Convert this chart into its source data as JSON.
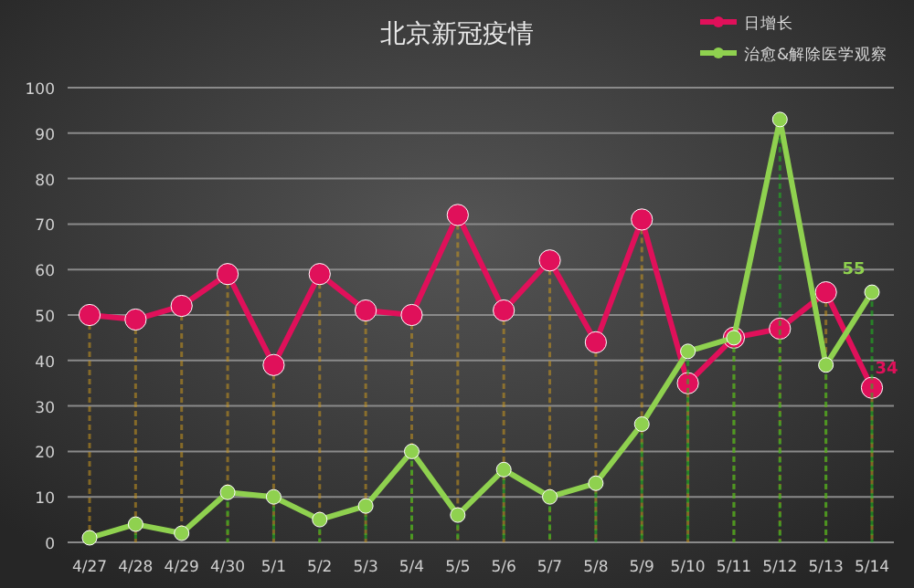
{
  "chart_data": {
    "type": "line",
    "title": "北京新冠疫情",
    "categories": [
      "4/27",
      "4/28",
      "4/29",
      "4/30",
      "5/1",
      "5/2",
      "5/3",
      "5/4",
      "5/5",
      "5/6",
      "5/7",
      "5/8",
      "5/9",
      "5/10",
      "5/11",
      "5/12",
      "5/13",
      "5/14"
    ],
    "series": [
      {
        "name": "日增长",
        "color": "#e0105a",
        "values": [
          50,
          49,
          52,
          59,
          39,
          59,
          51,
          50,
          72,
          51,
          62,
          44,
          71,
          35,
          45,
          47,
          55,
          34
        ],
        "value_labels": [
          null,
          null,
          null,
          null,
          null,
          null,
          null,
          null,
          null,
          null,
          null,
          null,
          null,
          null,
          null,
          null,
          null,
          "34"
        ]
      },
      {
        "name": "治愈&解除医学观察",
        "color": "#8fd14f",
        "values": [
          1,
          4,
          2,
          11,
          10,
          5,
          8,
          20,
          6,
          16,
          10,
          13,
          26,
          42,
          45,
          93,
          39,
          55
        ],
        "value_labels": [
          null,
          null,
          null,
          null,
          null,
          null,
          null,
          null,
          null,
          null,
          null,
          null,
          null,
          null,
          null,
          null,
          null,
          "55"
        ]
      }
    ],
    "ylim": [
      0,
      100
    ],
    "yticks": [
      0,
      10,
      20,
      30,
      40,
      50,
      60,
      70,
      80,
      90,
      100
    ],
    "grid": "y",
    "legend": "top right",
    "marker": "circle"
  }
}
